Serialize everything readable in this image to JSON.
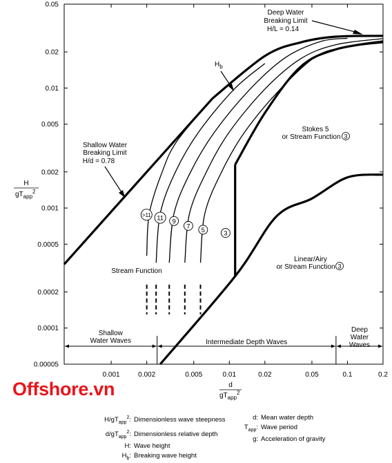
{
  "brand": "Offshore.vn",
  "chart_data": {
    "type": "line",
    "x_scale": "log",
    "y_scale": "log",
    "xlim": [
      0.0004,
      0.2
    ],
    "ylim": [
      5e-05,
      0.05
    ],
    "x_ticks": [
      "0.001",
      "0.002",
      "0.005",
      "0.01",
      "0.02",
      "0.05",
      "0.1",
      "0.2"
    ],
    "y_ticks": [
      "0.05",
      "0.02",
      "0.01",
      "0.005",
      "0.002",
      "0.001",
      "0.0005",
      "0.0002",
      "0.0001",
      "0.00005"
    ],
    "x_tick_values": [
      0.001,
      0.002,
      0.005,
      0.01,
      0.02,
      0.05,
      0.1,
      0.2
    ],
    "y_tick_values": [
      0.05,
      0.02,
      0.01,
      0.005,
      0.002,
      0.001,
      0.0005,
      0.0002,
      0.0001,
      5e-05
    ],
    "xlabel": {
      "num": "d",
      "den": "gT",
      "sub": "app",
      "sup": "2"
    },
    "ylabel": {
      "num": "H",
      "den": "gT",
      "sub": "app",
      "sup": "2"
    },
    "bold_lines": [
      {
        "id": "shallow-water-limit",
        "points": [
          [
            0.0004,
            0.00034
          ],
          [
            0.0072,
            0.0082
          ]
        ]
      },
      {
        "id": "deep-water-limit",
        "points": [
          [
            0.0072,
            0.0082
          ],
          [
            0.02,
            0.0185
          ],
          [
            0.04,
            0.024
          ],
          [
            0.08,
            0.0268
          ],
          [
            0.2,
            0.0272
          ]
        ]
      },
      {
        "id": "stokes5-boundary",
        "points": [
          [
            0.0026,
            5e-05
          ],
          [
            0.0112,
            0.00027
          ],
          [
            0.025,
            0.00085
          ],
          [
            0.05,
            0.0012
          ],
          [
            0.1,
            0.0018
          ],
          [
            0.2,
            0.0019
          ]
        ]
      },
      {
        "id": "stokes-stream-divider",
        "points": [
          [
            0.0112,
            0.00027
          ],
          [
            0.0112,
            0.0023
          ]
        ]
      },
      {
        "id": "stream-boundary",
        "points": [
          [
            0.0112,
            0.0023
          ],
          [
            0.02,
            0.0062
          ],
          [
            0.04,
            0.015
          ],
          [
            0.08,
            0.021
          ],
          [
            0.2,
            0.0245
          ]
        ]
      }
    ],
    "thin_lines": [
      {
        "id": "validity-11plus",
        "points": [
          [
            0.002,
            0.0004
          ],
          [
            0.0021,
            0.0009
          ],
          [
            0.0027,
            0.002
          ],
          [
            0.0036,
            0.0036
          ],
          [
            0.0072,
            0.0082
          ]
        ]
      },
      {
        "id": "validity-11",
        "points": [
          [
            0.0024,
            0.00035
          ],
          [
            0.0026,
            0.0009
          ],
          [
            0.0035,
            0.002
          ],
          [
            0.0055,
            0.0043
          ],
          [
            0.011,
            0.0098
          ],
          [
            0.02,
            0.016
          ]
        ]
      },
      {
        "id": "validity-9",
        "points": [
          [
            0.0031,
            0.00035
          ],
          [
            0.0034,
            0.0009
          ],
          [
            0.0047,
            0.002
          ],
          [
            0.0075,
            0.0043
          ],
          [
            0.015,
            0.0098
          ],
          [
            0.03,
            0.018
          ],
          [
            0.06,
            0.0245
          ],
          [
            0.1,
            0.026
          ]
        ]
      },
      {
        "id": "validity-7",
        "points": [
          [
            0.0042,
            0.00035
          ],
          [
            0.0046,
            0.0009
          ],
          [
            0.0064,
            0.002
          ],
          [
            0.01,
            0.0043
          ],
          [
            0.02,
            0.0098
          ],
          [
            0.04,
            0.0175
          ],
          [
            0.08,
            0.023
          ],
          [
            0.2,
            0.0258
          ]
        ]
      },
      {
        "id": "validity-5",
        "points": [
          [
            0.0057,
            0.00035
          ],
          [
            0.0062,
            0.0009
          ],
          [
            0.0086,
            0.002
          ],
          [
            0.0135,
            0.0043
          ],
          [
            0.027,
            0.0098
          ],
          [
            0.055,
            0.0185
          ],
          [
            0.1,
            0.022
          ],
          [
            0.2,
            0.0238
          ]
        ]
      }
    ],
    "dashed_lines": [
      {
        "x": 0.002,
        "y_range": [
          0.00013,
          0.00023
        ]
      },
      {
        "x": 0.0024,
        "y_range": [
          0.00013,
          0.00023
        ]
      },
      {
        "x": 0.0031,
        "y_range": [
          0.00013,
          0.00023
        ]
      },
      {
        "x": 0.0042,
        "y_range": [
          0.00013,
          0.00023
        ]
      },
      {
        "x": 0.0057,
        "y_range": [
          0.00013,
          0.00023
        ]
      }
    ],
    "circled_labels": [
      {
        "text": ">11",
        "x": 0.00199,
        "y": 0.00088
      },
      {
        "text": "11",
        "x": 0.0026,
        "y": 0.00083
      },
      {
        "text": "9",
        "x": 0.0034,
        "y": 0.00078
      },
      {
        "text": "7",
        "x": 0.0045,
        "y": 0.00071
      },
      {
        "text": "5",
        "x": 0.006,
        "y": 0.00066
      },
      {
        "text": "3",
        "x": 0.0093,
        "y": 0.00062
      }
    ],
    "regions": {
      "shallow": "Shallow Water Waves",
      "intermediate": "Intermediate Depth Waves",
      "deep": "Deep Water Waves"
    },
    "region_bounds": [
      0.002,
      0.08
    ],
    "annotations": {
      "hb": {
        "main": "H",
        "sub": "b"
      },
      "deep_limit": [
        "Deep Water",
        "Breaking Limit",
        "H/L = 0.14"
      ],
      "shallow_limit": [
        "Shallow Water",
        "Breaking Limit",
        "H/d = 0.78"
      ],
      "stokes": [
        "Stokes 5",
        "or Stream Function"
      ],
      "linear": [
        "Linear/Airy",
        "or Stream Function"
      ],
      "circle3": "3",
      "stream_function": "Stream Function"
    }
  },
  "legend": {
    "left": [
      {
        "term": "H/gT",
        "sub": "app",
        "sup": "2",
        "tail": ":",
        "desc": "Dimensionless wave steepness"
      },
      {
        "term": "d/gT",
        "sub": "app",
        "sup": "2",
        "tail": ":",
        "desc": "Dimensionless relative depth"
      },
      {
        "term": "H",
        "sub": "",
        "sup": "",
        "tail": ":",
        "desc": "Wave height"
      },
      {
        "term": "H",
        "sub": "b",
        "sup": "",
        "tail": ":",
        "desc": "Breaking wave height"
      }
    ],
    "right": [
      {
        "term": "d",
        "sub": "",
        "sup": "",
        "tail": ":",
        "desc": "Mean water depth"
      },
      {
        "term": "T",
        "sub": "app",
        "sup": "",
        "tail": ":",
        "desc": "Wave period"
      },
      {
        "term": "g",
        "sub": "",
        "sup": "",
        "tail": ":",
        "desc": "Acceleration of gravity"
      }
    ]
  }
}
